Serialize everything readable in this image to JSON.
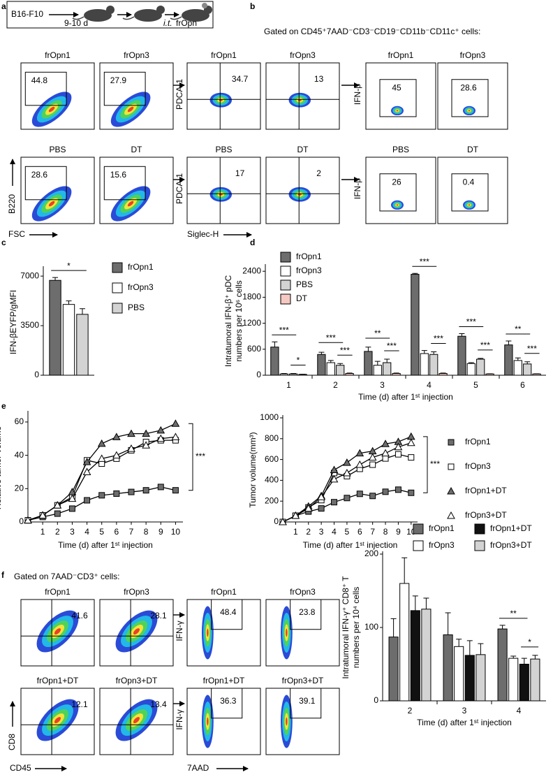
{
  "panel_labels": [
    "a",
    "b",
    "c",
    "d",
    "e",
    "f"
  ],
  "schematic": {
    "cell_line": "B16-F10",
    "interval": "9-10 d",
    "route": "i.t.",
    "treatment": "frOpn"
  },
  "flow_b": {
    "header": "Gated on CD45⁺7AAD⁻CD3⁻CD19⁻CD11b⁻CD11c⁺ cells:",
    "groups": [
      {
        "x_label": "FSC",
        "y_label": "B220",
        "rows": [
          [
            {
              "title": "frOpn1",
              "value": 44.8
            },
            {
              "title": "frOpn3",
              "value": 27.9
            }
          ],
          [
            {
              "title": "PBS",
              "value": 28.6
            },
            {
              "title": "DT",
              "value": 15.6
            }
          ]
        ]
      },
      {
        "x_label": "Siglec-H",
        "y_labels": [
          "PDCA-1",
          "PDCA-1"
        ],
        "rows": [
          [
            {
              "title": "frOpn1",
              "value": 34.7
            },
            {
              "title": "frOpn3",
              "value": 13
            }
          ],
          [
            {
              "title": "PBS",
              "value": 17
            },
            {
              "title": "DT",
              "value": 2
            }
          ]
        ]
      },
      {
        "y_labels": [
          "IFN-β",
          "IFN-β"
        ],
        "rows": [
          [
            {
              "title": "frOpn1",
              "value": 45
            },
            {
              "title": "frOpn3",
              "value": 28.6
            }
          ],
          [
            {
              "title": "PBS",
              "value": 26
            },
            {
              "title": "DT",
              "value": 0.4
            }
          ]
        ]
      }
    ]
  },
  "flow_f": {
    "header": "Gated on 7AAD⁻CD3⁺ cells:",
    "groups": [
      {
        "x_label": "CD45",
        "y_label": "CD8",
        "rows": [
          [
            {
              "title": "frOpn1",
              "value": 41.6
            },
            {
              "title": "frOpn3",
              "value": 28.1
            }
          ],
          [
            {
              "title": "frOpn1+DT",
              "value": 12.1
            },
            {
              "title": "frOpn3+DT",
              "value": 13.4
            }
          ]
        ]
      },
      {
        "x_label": "7AAD",
        "y_labels": [
          "IFN-γ",
          "IFN-γ"
        ],
        "rows": [
          [
            {
              "title": "frOpn1",
              "value": 48.4
            },
            {
              "title": "frOpn3",
              "value": 23.8
            }
          ],
          [
            {
              "title": "frOpn1+DT",
              "value": 36.3
            },
            {
              "title": "frOpn3+DT",
              "value": 39.1
            }
          ]
        ]
      }
    ]
  },
  "chart_data": [
    {
      "type": "bar",
      "ylabel": "IFN-βEYFP/gMFI",
      "categories": [
        null
      ],
      "series": [
        {
          "name": "frOpn1",
          "color": "#6d6d6d",
          "values": [
            6700
          ],
          "errors": [
            200
          ]
        },
        {
          "name": "frOpn3",
          "color": "#ffffff",
          "values": [
            5000
          ],
          "errors": [
            250
          ]
        },
        {
          "name": "PBS",
          "color": "#d3d3d3",
          "values": [
            4300
          ],
          "errors": [
            400
          ]
        }
      ],
      "ylim": [
        0,
        7500
      ],
      "yticks": [
        0,
        3500,
        7000
      ],
      "legend": "right",
      "significance": [
        [
          "*"
        ]
      ]
    },
    {
      "type": "bar",
      "ylabel": [
        "Intratumoral IFN-β⁺ pDC",
        "numbers per 10⁶ cells"
      ],
      "xlabel": "Time (d) after 1ˢᵗ injection",
      "categories": [
        "1",
        "2",
        "3",
        "4",
        "5",
        "6"
      ],
      "series": [
        {
          "name": "frOpn1",
          "color": "#6d6d6d",
          "values": [
            650,
            480,
            550,
            2330,
            900,
            700
          ],
          "errors": [
            120,
            50,
            100,
            20,
            60,
            90
          ]
        },
        {
          "name": "frOpn3",
          "color": "#ffffff",
          "values": [
            30,
            290,
            230,
            500,
            270,
            340
          ],
          "errors": [
            10,
            50,
            90,
            70,
            20,
            60
          ]
        },
        {
          "name": "PBS",
          "color": "#d3d3d3",
          "values": [
            30,
            230,
            290,
            480,
            370,
            260
          ],
          "errors": [
            10,
            40,
            80,
            60,
            20,
            50
          ]
        },
        {
          "name": "DT",
          "color": "#f5c9c2",
          "values": [
            20,
            40,
            40,
            40,
            30,
            30
          ],
          "errors": [
            5,
            10,
            10,
            10,
            5,
            5
          ]
        }
      ],
      "ylim": [
        0,
        2500
      ],
      "yticks": [
        0,
        600,
        1200,
        1800,
        2400
      ],
      "legend": "upper left",
      "significance": [
        [
          "***",
          "*"
        ],
        [
          "***",
          "***"
        ],
        [
          "**",
          "***"
        ],
        [
          "***",
          "***"
        ],
        [
          "***",
          "***"
        ],
        [
          "**",
          "***"
        ]
      ]
    },
    {
      "type": "line",
      "ylabel": "Relative tumor volume",
      "xlabel": "Time (d) after 1ˢᵗ injection",
      "x": [
        0,
        1,
        2,
        3,
        4,
        5,
        6,
        7,
        8,
        9,
        10
      ],
      "series": [
        {
          "marker": "square",
          "color": "#6d6d6d",
          "values": [
            1,
            3,
            5,
            8,
            13,
            16,
            17,
            18,
            19,
            21,
            19
          ]
        },
        {
          "marker": "square",
          "color": "#ffffff",
          "values": [
            1,
            4,
            10,
            15,
            37,
            35,
            38,
            43,
            48,
            49,
            49
          ]
        },
        {
          "marker": "triangle",
          "color": "#6d6d6d",
          "values": [
            1,
            4,
            10,
            18,
            36,
            47,
            51,
            53,
            53,
            55,
            59
          ]
        },
        {
          "marker": "triangle",
          "color": "#ffffff",
          "values": [
            1,
            4,
            10,
            14,
            30,
            38,
            40,
            44,
            46,
            50,
            51
          ]
        }
      ],
      "xlim": [
        0,
        10.5
      ],
      "xticks": [
        1,
        2,
        3,
        4,
        5,
        6,
        7,
        8,
        9,
        10
      ],
      "ylim": [
        0,
        65
      ],
      "yticks": [
        0,
        20,
        40,
        60
      ],
      "annotation": "***"
    },
    {
      "type": "line",
      "ylabel": "Tumor volume(mm³)",
      "xlabel": "Time (d) after 1ˢᵗ injection",
      "x": [
        0,
        1,
        2,
        3,
        4,
        5,
        6,
        7,
        8,
        9,
        10
      ],
      "series": [
        {
          "name": "frOpn1",
          "marker": "square",
          "color": "#6d6d6d",
          "values": [
            0,
            60,
            100,
            130,
            190,
            230,
            270,
            250,
            290,
            310,
            280
          ]
        },
        {
          "name": "frOpn3",
          "marker": "square",
          "color": "#ffffff",
          "values": [
            0,
            60,
            140,
            210,
            470,
            440,
            510,
            550,
            610,
            650,
            620
          ]
        },
        {
          "name": "frOpn1+DT",
          "marker": "triangle",
          "color": "#6d6d6d",
          "values": [
            0,
            60,
            150,
            250,
            500,
            570,
            660,
            680,
            750,
            770,
            820
          ]
        },
        {
          "name": "frOpn3+DT",
          "marker": "triangle",
          "color": "#ffffff",
          "values": [
            0,
            60,
            130,
            240,
            410,
            470,
            550,
            620,
            660,
            720,
            760
          ]
        }
      ],
      "xlim": [
        0,
        10.5
      ],
      "xticks": [
        1,
        2,
        3,
        4,
        5,
        6,
        7,
        8,
        9,
        10
      ],
      "ylim": [
        0,
        1000
      ],
      "yticks": [
        0,
        200,
        400,
        600,
        800,
        1000
      ],
      "annotation": "***",
      "legend": "right"
    },
    {
      "type": "bar",
      "ylabel": [
        "Intratumoral IFN-γ⁺ CD8⁺ T",
        "numbers per 10⁴ cells"
      ],
      "xlabel": "Time (d) after 1ˢᵗ injection",
      "categories": [
        "2",
        "3",
        "4"
      ],
      "series": [
        {
          "name": "frOpn1",
          "color": "#6d6d6d",
          "values": [
            87,
            90,
            98
          ],
          "errors": [
            25,
            30,
            5
          ]
        },
        {
          "name": "frOpn3",
          "color": "#ffffff",
          "values": [
            160,
            74,
            58
          ],
          "errors": [
            35,
            10,
            3
          ]
        },
        {
          "name": "frOpn1+DT",
          "color": "#111111",
          "values": [
            123,
            62,
            50
          ],
          "errors": [
            20,
            20,
            8
          ]
        },
        {
          "name": "frOpn3+DT",
          "color": "#d3d3d3",
          "values": [
            125,
            63,
            57
          ],
          "errors": [
            15,
            15,
            5
          ]
        }
      ],
      "ylim": [
        0,
        200
      ],
      "yticks": [
        0,
        100,
        200
      ],
      "legend": "top",
      "significance": [
        [],
        [],
        [
          "**",
          "*"
        ]
      ]
    }
  ]
}
